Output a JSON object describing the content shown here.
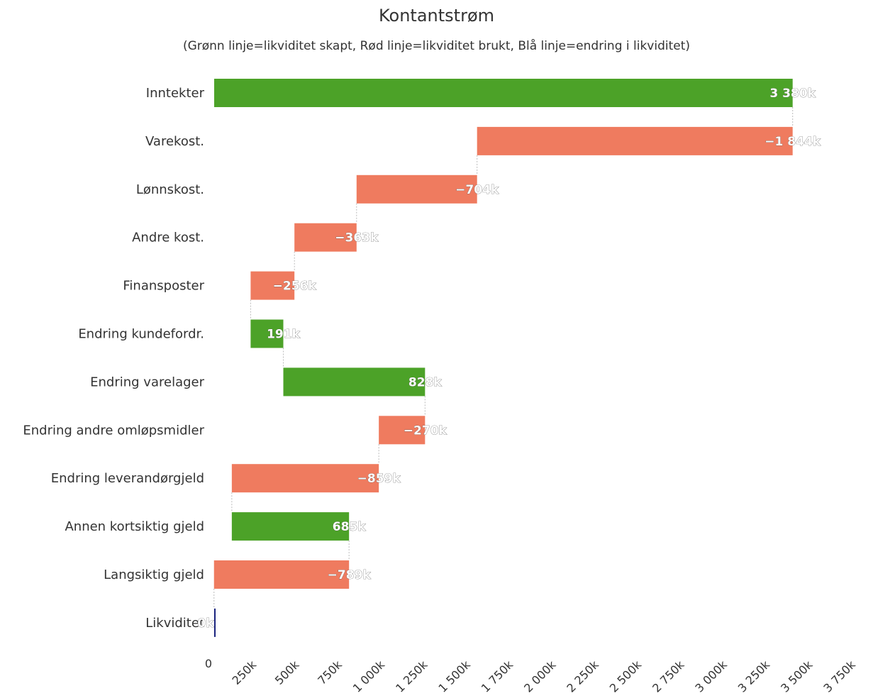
{
  "chart_data": {
    "type": "bar",
    "subtype": "waterfall-horizontal",
    "title": "Kontantstrøm",
    "subtitle": "(Grønn linje=likviditet skapt, Rød linje=likviditet brukt, Blå linje=endring i likviditet)",
    "categories": [
      "Inntekter",
      "Varekost.",
      "Lønnskost.",
      "Andre kost.",
      "Finansposter",
      "Endring kundefordr.",
      "Endring varelager",
      "Endring andre omløpsmidler",
      "Endring leverandørgjeld",
      "Annen kortsiktig gjeld",
      "Langsiktig gjeld",
      "Likviditet"
    ],
    "values": [
      3380,
      -1844,
      -704,
      -363,
      -256,
      191,
      828,
      -270,
      -859,
      685,
      -789,
      0
    ],
    "value_labels": [
      "3 380k",
      "−1 844k",
      "−704k",
      "−363k",
      "−256k",
      "191k",
      "828k",
      "−270k",
      "−859k",
      "685k",
      "−789k",
      "0k"
    ],
    "xlim": [
      0,
      3750
    ],
    "x_ticks": [
      0,
      250,
      500,
      750,
      1000,
      1250,
      1500,
      1750,
      2000,
      2250,
      2500,
      2750,
      3000,
      3250,
      3500,
      3750
    ],
    "x_tick_labels": [
      "0",
      "250k",
      "500k",
      "750k",
      "1 000k",
      "1 250k",
      "1 500k",
      "1 750k",
      "2 000k",
      "2 250k",
      "2 500k",
      "2 750k",
      "3 000k",
      "3 250k",
      "3 500k",
      "3 750k"
    ],
    "grid": false,
    "colors": {
      "positive": "#4ca228",
      "negative": "#ef7b5f",
      "total": "#1a237e"
    }
  }
}
